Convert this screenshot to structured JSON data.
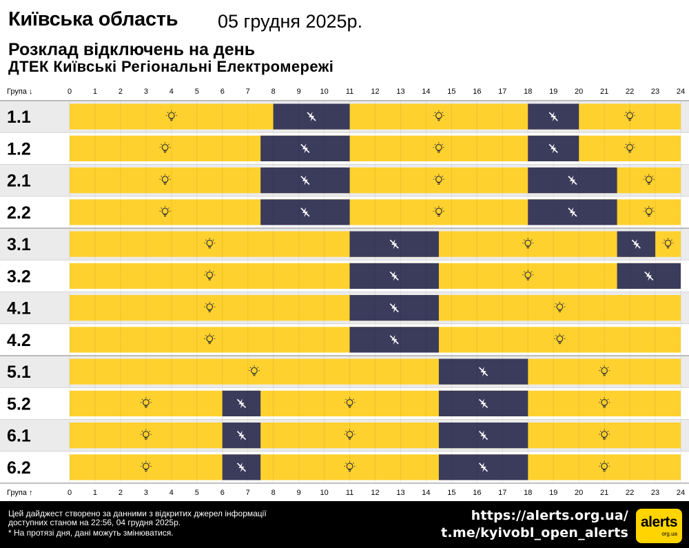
{
  "header": {
    "region": "Київська область",
    "date": "05 грудня 2025р.",
    "schedule_title": "Розклад відключень на день",
    "company": "ДТЕК Київські Регіональні Електромережі"
  },
  "chart_data": {
    "type": "timeline",
    "x_label_top": "Група ↓",
    "x_label_bottom": "Група ↑",
    "x_ticks": [
      "0",
      "1",
      "2",
      "3",
      "4",
      "5",
      "6",
      "7",
      "8",
      "9",
      "10",
      "11",
      "12",
      "13",
      "14",
      "15",
      "16",
      "17",
      "18",
      "19",
      "20",
      "21",
      "22",
      "23",
      "24"
    ],
    "xlim": [
      0,
      24
    ],
    "colors": {
      "power_on": "#ffd12e",
      "power_off": "#3b3b5c",
      "row_odd": "#ebebeb",
      "row_even": "#ffffff"
    },
    "groups": [
      {
        "name": "1.1",
        "outages": [
          [
            8,
            11
          ],
          [
            18,
            20
          ]
        ]
      },
      {
        "name": "1.2",
        "outages": [
          [
            7.5,
            11
          ],
          [
            18,
            20
          ]
        ]
      },
      {
        "name": "2.1",
        "outages": [
          [
            7.5,
            11
          ],
          [
            18,
            21.5
          ]
        ]
      },
      {
        "name": "2.2",
        "outages": [
          [
            7.5,
            11
          ],
          [
            18,
            21.5
          ]
        ]
      },
      {
        "name": "3.1",
        "outages": [
          [
            11,
            14.5
          ],
          [
            21.5,
            23
          ]
        ]
      },
      {
        "name": "3.2",
        "outages": [
          [
            11,
            14.5
          ],
          [
            21.5,
            24
          ]
        ]
      },
      {
        "name": "4.1",
        "outages": [
          [
            11,
            14.5
          ]
        ]
      },
      {
        "name": "4.2",
        "outages": [
          [
            11,
            14.5
          ]
        ]
      },
      {
        "name": "5.1",
        "outages": [
          [
            14.5,
            18
          ]
        ]
      },
      {
        "name": "5.2",
        "outages": [
          [
            6,
            7.5
          ],
          [
            14.5,
            18
          ]
        ]
      },
      {
        "name": "6.1",
        "outages": [
          [
            6,
            7.5
          ],
          [
            14.5,
            18
          ]
        ]
      },
      {
        "name": "6.2",
        "outages": [
          [
            6,
            7.5
          ],
          [
            14.5,
            18
          ]
        ]
      }
    ]
  },
  "footer": {
    "note_line1": "Цей дайджест створено за данними з відкритих джерел інформації",
    "note_line2": "доступних станом на 22:56, 04 грудня 2025р.",
    "note_line3": "* На протязі дня, дані можуть змінюватися.",
    "link_site": "https://alerts.org.ua/",
    "link_telegram": "t.me/kyivobl_open_alerts",
    "logo_text": "alerts",
    "logo_sub": "org.ua"
  }
}
